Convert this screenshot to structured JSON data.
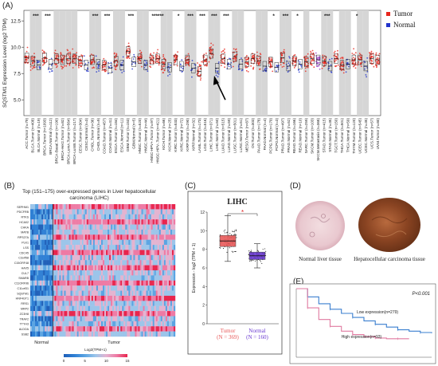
{
  "panels": {
    "a": "(A)",
    "b": "(B)",
    "c": "(C)",
    "d": "(D)",
    "e": "(E)"
  },
  "colors": {
    "tumor": "#e8261c",
    "normal": "#2233cc",
    "shade": "#d6d6d6",
    "heat_high": "#e8254d",
    "heat_low": "#1f6fc4",
    "box_tumor": "#e85a5a",
    "box_normal": "#6a3ad0",
    "km_high": "#e07aa0",
    "km_low": "#3a7fcf"
  },
  "chart_data": [
    {
      "type": "scatter",
      "panel": "A",
      "ylabel": "SQSTM1 Expression Level (log2 TPM)",
      "yticks": [
        "5.0",
        "7.5",
        "10.0",
        "12.5"
      ],
      "ylim": [
        3.5,
        13.5
      ],
      "legend": [
        {
          "name": "Tumor",
          "color": "#e8261c"
        },
        {
          "name": "Normal",
          "color": "#2233cc"
        }
      ],
      "legend_placement": "right",
      "groups": [
        {
          "label": "ACC.Tumor (n=79)",
          "kind": "tumor",
          "shaded": false,
          "sig": ""
        },
        {
          "label": "BLCA.Tumor (n=408)",
          "kind": "tumor",
          "shaded": true,
          "sig": "***"
        },
        {
          "label": "BLCA.Normal (n=19)",
          "kind": "normal",
          "shaded": true,
          "sig": ""
        },
        {
          "label": "BRCA.Tumor (n=1093)",
          "kind": "tumor",
          "shaded": false,
          "sig": "***"
        },
        {
          "label": "BRCA.Normal (n=112)",
          "kind": "normal",
          "shaded": false,
          "sig": ""
        },
        {
          "label": "BRCA-Basal.Tumor (n=190)",
          "kind": "tumor",
          "shaded": true,
          "sig": ""
        },
        {
          "label": "BRCA-Her2.Tumor (n=82)",
          "kind": "tumor",
          "shaded": true,
          "sig": ""
        },
        {
          "label": "BRCA-LumA.Tumor (n=564)",
          "kind": "tumor",
          "shaded": true,
          "sig": ""
        },
        {
          "label": "BRCA-LumB.Tumor (n=217)",
          "kind": "tumor",
          "shaded": true,
          "sig": ""
        },
        {
          "label": "CESC.Tumor (n=304)",
          "kind": "tumor",
          "shaded": false,
          "sig": ""
        },
        {
          "label": "CESC.Normal (n=3)",
          "kind": "normal",
          "shaded": false,
          "sig": ""
        },
        {
          "label": "CHOL.Tumor (n=36)",
          "kind": "tumor",
          "shaded": true,
          "sig": "***"
        },
        {
          "label": "CHOL.Normal (n=9)",
          "kind": "normal",
          "shaded": true,
          "sig": ""
        },
        {
          "label": "COAD.Tumor (n=457)",
          "kind": "tumor",
          "shaded": false,
          "sig": "***"
        },
        {
          "label": "COAD.Normal (n=41)",
          "kind": "normal",
          "shaded": false,
          "sig": ""
        },
        {
          "label": "ESCA.Tumor (n=184)",
          "kind": "tumor",
          "shaded": true,
          "sig": ""
        },
        {
          "label": "ESCA.Normal (n=11)",
          "kind": "normal",
          "shaded": true,
          "sig": ""
        },
        {
          "label": "GBM.Tumor (n=153)",
          "kind": "tumor",
          "shaded": false,
          "sig": "***"
        },
        {
          "label": "GBM.Normal (n=5)",
          "kind": "normal",
          "shaded": false,
          "sig": ""
        },
        {
          "label": "HNSC.Tumor (n=520)",
          "kind": "tumor",
          "shaded": true,
          "sig": ""
        },
        {
          "label": "HNSC.Normal (n=44)",
          "kind": "normal",
          "shaded": true,
          "sig": ""
        },
        {
          "label": "HNSC-HPV+.Tumor (n=97)",
          "kind": "tumor",
          "shaded": false,
          "sig": "***"
        },
        {
          "label": "HNSC-HPV-.Tumor (n=421)",
          "kind": "tumor",
          "shaded": false,
          "sig": "***"
        },
        {
          "label": "KICH.Tumor (n=66)",
          "kind": "tumor",
          "shaded": true,
          "sig": ""
        },
        {
          "label": "KICH.Normal (n=25)",
          "kind": "normal",
          "shaded": true,
          "sig": ""
        },
        {
          "label": "KIRC.Tumor (n=533)",
          "kind": "tumor",
          "shaded": false,
          "sig": "*"
        },
        {
          "label": "KIRC.Normal (n=72)",
          "kind": "normal",
          "shaded": false,
          "sig": ""
        },
        {
          "label": "KIRP.Tumor (n=290)",
          "kind": "tumor",
          "shaded": true,
          "sig": "***"
        },
        {
          "label": "KIRP.Normal (n=32)",
          "kind": "normal",
          "shaded": true,
          "sig": ""
        },
        {
          "label": "LAML.Tumor (n=173)",
          "kind": "tumor",
          "shaded": false,
          "sig": "***"
        },
        {
          "label": "LGG.Tumor (n=516)",
          "kind": "tumor",
          "shaded": false,
          "sig": ""
        },
        {
          "label": "LIHC.Tumor (n=371)",
          "kind": "tumor",
          "shaded": true,
          "sig": "***"
        },
        {
          "label": "LIHC.Normal (n=50)",
          "kind": "normal",
          "shaded": true,
          "sig": ""
        },
        {
          "label": "LUAD.Tumor (n=515)",
          "kind": "tumor",
          "shaded": false,
          "sig": "***"
        },
        {
          "label": "LUAD.Normal (n=59)",
          "kind": "normal",
          "shaded": false,
          "sig": ""
        },
        {
          "label": "LUSC.Tumor (n=501)",
          "kind": "tumor",
          "shaded": true,
          "sig": ""
        },
        {
          "label": "LUSC.Normal (n=51)",
          "kind": "normal",
          "shaded": true,
          "sig": ""
        },
        {
          "label": "MESO.Tumor (n=87)",
          "kind": "tumor",
          "shaded": false,
          "sig": ""
        },
        {
          "label": "OV.Tumor (n=303)",
          "kind": "tumor",
          "shaded": false,
          "sig": ""
        },
        {
          "label": "PAAD.Tumor (n=178)",
          "kind": "tumor",
          "shaded": true,
          "sig": ""
        },
        {
          "label": "PAAD.Normal (n=4)",
          "kind": "normal",
          "shaded": true,
          "sig": ""
        },
        {
          "label": "PCPG.Tumor (n=179)",
          "kind": "tumor",
          "shaded": false,
          "sig": "*"
        },
        {
          "label": "PCPG.Normal (n=3)",
          "kind": "normal",
          "shaded": false,
          "sig": ""
        },
        {
          "label": "PRAD.Tumor (n=497)",
          "kind": "tumor",
          "shaded": true,
          "sig": "***"
        },
        {
          "label": "PRAD.Normal (n=52)",
          "kind": "normal",
          "shaded": true,
          "sig": ""
        },
        {
          "label": "READ.Tumor (n=166)",
          "kind": "tumor",
          "shaded": false,
          "sig": "*"
        },
        {
          "label": "READ.Normal (n=10)",
          "kind": "normal",
          "shaded": false,
          "sig": ""
        },
        {
          "label": "SARC.Tumor (n=259)",
          "kind": "tumor",
          "shaded": true,
          "sig": ""
        },
        {
          "label": "SKCM.Tumor (n=103)",
          "kind": "tumor",
          "shaded": false,
          "sig": ""
        },
        {
          "label": "SKCM.Metastasis (n=368)",
          "kind": "metastasis",
          "shaded": false,
          "sig": ""
        },
        {
          "label": "STAD.Tumor (n=415)",
          "kind": "tumor",
          "shaded": true,
          "sig": "***"
        },
        {
          "label": "STAD.Normal (n=35)",
          "kind": "normal",
          "shaded": true,
          "sig": ""
        },
        {
          "label": "TGCT.Tumor (n=150)",
          "kind": "tumor",
          "shaded": false,
          "sig": ""
        },
        {
          "label": "THCA.Tumor (n=501)",
          "kind": "tumor",
          "shaded": true,
          "sig": ""
        },
        {
          "label": "THCA.Normal (n=59)",
          "kind": "normal",
          "shaded": true,
          "sig": ""
        },
        {
          "label": "THYM.Tumor (n=120)",
          "kind": "tumor",
          "shaded": false,
          "sig": "*"
        },
        {
          "label": "UCEC.Tumor (n=545)",
          "kind": "tumor",
          "shaded": true,
          "sig": ""
        },
        {
          "label": "UCEC.Normal (n=35)",
          "kind": "normal",
          "shaded": true,
          "sig": ""
        },
        {
          "label": "UCS.Tumor (n=57)",
          "kind": "tumor",
          "shaded": false,
          "sig": ""
        },
        {
          "label": "UVM.Tumor (n=80)",
          "kind": "tumor",
          "shaded": false,
          "sig": ""
        }
      ],
      "medians": [
        9.0,
        8.7,
        8.3,
        9.0,
        8.4,
        8.9,
        8.8,
        8.9,
        8.9,
        8.7,
        8.3,
        8.8,
        8.4,
        8.3,
        8.0,
        8.7,
        8.3,
        9.6,
        8.6,
        8.9,
        8.3,
        8.8,
        8.9,
        8.4,
        8.1,
        8.8,
        8.2,
        8.8,
        8.0,
        7.7,
        8.8,
        9.4,
        8.0,
        8.9,
        8.4,
        9.1,
        8.4,
        8.6,
        8.9,
        8.7,
        8.2,
        8.6,
        8.1,
        9.0,
        8.2,
        8.7,
        8.4,
        8.6,
        8.9,
        8.8,
        8.7,
        8.2,
        8.9,
        8.3,
        8.4,
        8.8,
        8.8,
        8.2,
        8.9,
        8.8
      ]
    },
    {
      "type": "heatmap",
      "panel": "B",
      "title": "Top (151–175) over-expressed genes in Liver hepatocellular carcinoma (LIHC)",
      "genes": [
        "SEPHM1",
        "PDCFRB",
        "RTKS",
        "HCA02",
        "CHKA",
        "MATB",
        "RPS27A",
        "PLK1",
        "LSS",
        "CDC45",
        "C3orf58",
        "C15ORF48",
        "HAX5",
        "CUL7",
        "SMARB",
        "C11ORF96",
        "C11orf31",
        "SQSTM1",
        "HNF4GT1",
        "RRS1",
        "MRP2",
        "ZC3H8",
        "TRAF2",
        "TTYH3",
        "ALDOA",
        "SSB2"
      ],
      "column_groups": [
        "Normal",
        "Tumor"
      ],
      "colorbar_label": "Log2(TPM+1)",
      "colorbar_ticks": [
        "0",
        "5",
        "10",
        "15"
      ]
    },
    {
      "type": "scatter",
      "panel": "C",
      "title": "LIHC",
      "ylabel": "Expression - log2 (TPM + 1)",
      "yticks": [
        "0",
        "2",
        "4",
        "6",
        "8",
        "10",
        "12"
      ],
      "ylim": [
        0,
        12
      ],
      "significance": "*",
      "groups": [
        {
          "name": "Tumor",
          "n": "(N = 369)",
          "median": 8.9,
          "q1": 8.3,
          "q3": 9.5,
          "min": 6.7,
          "max": 11.6
        },
        {
          "name": "Normal",
          "n": "(N = 160)",
          "median": 7.3,
          "q1": 6.9,
          "q3": 7.7,
          "min": 6.0,
          "max": 8.6
        }
      ]
    },
    {
      "type": "line",
      "panel": "E",
      "pvalue": "P<0.001",
      "series": [
        {
          "name": "Low expression(n=279)",
          "x": [
            0,
            10,
            20,
            30,
            40,
            50,
            60,
            70,
            80,
            90,
            100,
            110,
            120
          ],
          "y": [
            1.0,
            0.88,
            0.78,
            0.7,
            0.64,
            0.58,
            0.53,
            0.48,
            0.44,
            0.4,
            0.38,
            0.36,
            0.35
          ]
        },
        {
          "name": "High expression(n=93)",
          "x": [
            0,
            10,
            20,
            30,
            40,
            50,
            60,
            70,
            80,
            90,
            100
          ],
          "y": [
            1.0,
            0.72,
            0.55,
            0.45,
            0.38,
            0.33,
            0.3,
            0.28,
            0.27,
            0.27,
            0.27
          ]
        }
      ]
    }
  ],
  "tissue": {
    "normal_label": "Normal liver tissue",
    "tumor_label": "Hepatocellular carcinoma tissue"
  }
}
